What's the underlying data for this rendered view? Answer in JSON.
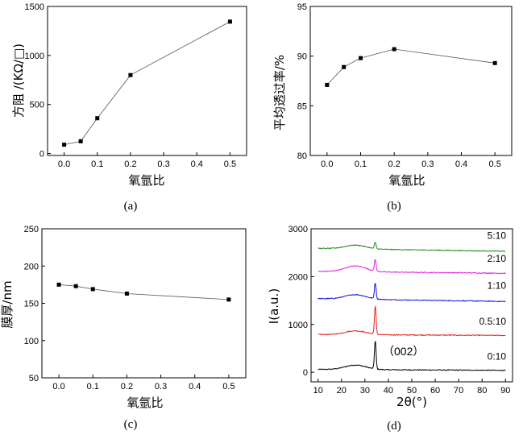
{
  "chart_data": [
    {
      "panel": "(a)",
      "type": "line",
      "x": [
        0,
        0.05,
        0.1,
        0.2,
        0.5
      ],
      "y": [
        90,
        125,
        360,
        800,
        1345
      ],
      "xlabel": "氧氩比",
      "ylabel": "方阻 /(KΩ/□)",
      "xlim": [
        -0.05,
        0.55
      ],
      "ylim": [
        -20,
        1500
      ],
      "xticks": [
        0.0,
        0.1,
        0.2,
        0.3,
        0.4,
        0.5
      ],
      "xtick_labels": [
        "0.0",
        "0.1",
        "0.2",
        "0.3",
        "0.4",
        "0.5"
      ],
      "yticks": [
        0,
        500,
        1000,
        1500
      ],
      "ytick_labels": [
        "0",
        "500",
        "1000",
        "1500"
      ],
      "caption": "(a)"
    },
    {
      "panel": "(b)",
      "type": "line",
      "x": [
        0,
        0.05,
        0.1,
        0.2,
        0.5
      ],
      "y": [
        87.1,
        88.9,
        89.8,
        90.7,
        89.3
      ],
      "xlabel": "氧氩比",
      "ylabel": "平均透过率/%",
      "xlim": [
        -0.05,
        0.55
      ],
      "ylim": [
        80,
        95
      ],
      "xticks": [
        0.0,
        0.1,
        0.2,
        0.3,
        0.4,
        0.5
      ],
      "xtick_labels": [
        "0.0",
        "0.1",
        "0.2",
        "0.3",
        "0.4",
        "0.5"
      ],
      "yticks": [
        80,
        85,
        90,
        95
      ],
      "ytick_labels": [
        "80",
        "85",
        "90",
        "95"
      ],
      "caption": "(b)"
    },
    {
      "panel": "(c)",
      "type": "line",
      "x": [
        0,
        0.05,
        0.1,
        0.2,
        0.5
      ],
      "y": [
        175,
        173,
        169,
        163,
        155
      ],
      "xlabel": "氧氩比",
      "ylabel": "膜厚/nm",
      "xlim": [
        -0.05,
        0.55
      ],
      "ylim": [
        50,
        250
      ],
      "xticks": [
        0.0,
        0.1,
        0.2,
        0.3,
        0.4,
        0.5
      ],
      "xtick_labels": [
        "0.0",
        "0.1",
        "0.2",
        "0.3",
        "0.4",
        "0.5"
      ],
      "yticks": [
        50,
        100,
        150,
        200,
        250
      ],
      "ytick_labels": [
        "50",
        "100",
        "150",
        "200",
        "250"
      ],
      "caption": "(c)"
    },
    {
      "panel": "(d)",
      "type": "line",
      "xlabel": "2θ(°)",
      "ylabel": "I(a.u.)",
      "xlim": [
        7,
        93
      ],
      "ylim": [
        -200,
        3000
      ],
      "xticks": [
        10,
        20,
        30,
        40,
        50,
        60,
        70,
        80,
        90
      ],
      "xtick_labels": [
        "10",
        "20",
        "30",
        "40",
        "50",
        "60",
        "70",
        "80",
        "90"
      ],
      "yticks": [
        0,
        1000,
        2000,
        3000
      ],
      "ytick_labels": [
        "0",
        "1000",
        "2000",
        "3000"
      ],
      "annotation": "（002）",
      "peak_position": 34.4,
      "series": [
        {
          "name": "0:10",
          "color": "#000000",
          "baseline": 60,
          "end": 40,
          "hump": 95,
          "peak": 600
        },
        {
          "name": "0.5:10",
          "color": "#e8201c",
          "baseline": 790,
          "end": 770,
          "hump": 80,
          "peak": 600
        },
        {
          "name": "1:10",
          "color": "#1414e0",
          "baseline": 1540,
          "end": 1480,
          "hump": 95,
          "peak": 340
        },
        {
          "name": "2:10",
          "color": "#e020e0",
          "baseline": 2110,
          "end": 2070,
          "hump": 120,
          "peak": 250
        },
        {
          "name": "5:10",
          "color": "#1e8c1e",
          "baseline": 2590,
          "end": 2530,
          "hump": 80,
          "peak": 130
        }
      ],
      "caption": "(d)"
    }
  ]
}
